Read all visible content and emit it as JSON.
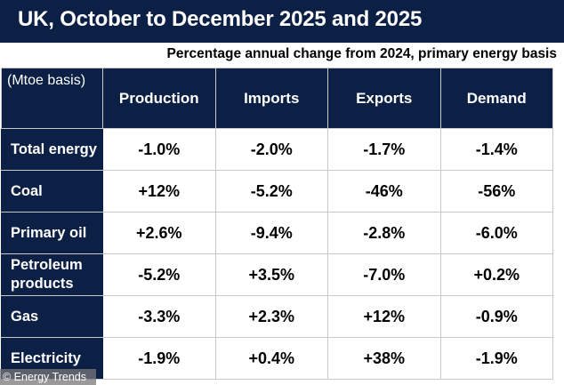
{
  "title": "UK, October to December 2025 and 2025",
  "subtitle": "Percentage annual change from 2024, primary energy basis",
  "credit": "© Energy Trends",
  "colors": {
    "navy": "#0c1f45",
    "grid": "#c8c8c8"
  },
  "chart_data": {
    "type": "table",
    "title": "UK, October to December 2025 and 2025",
    "subtitle": "Percentage annual change from 2024, primary energy basis",
    "corner_label": "(Mtoe basis)",
    "columns": [
      "Production",
      "Imports",
      "Exports",
      "Demand"
    ],
    "rows": [
      {
        "label": "Total energy",
        "values": [
          "-1.0%",
          "-2.0%",
          "-1.7%",
          "-1.4%"
        ]
      },
      {
        "label": "Coal",
        "values": [
          "+12%",
          "-5.2%",
          "-46%",
          "-56%"
        ]
      },
      {
        "label": "Primary oil",
        "values": [
          "+2.6%",
          "-9.4%",
          "-2.8%",
          "-6.0%"
        ]
      },
      {
        "label": "Petroleum products",
        "values": [
          "-5.2%",
          "+3.5%",
          "-7.0%",
          "+0.2%"
        ]
      },
      {
        "label": "Gas",
        "values": [
          "-3.3%",
          "+2.3%",
          "+12%",
          "-0.9%"
        ]
      },
      {
        "label": "Electricity",
        "values": [
          "-1.9%",
          "+0.4%",
          "+38%",
          "-1.9%"
        ]
      }
    ]
  }
}
